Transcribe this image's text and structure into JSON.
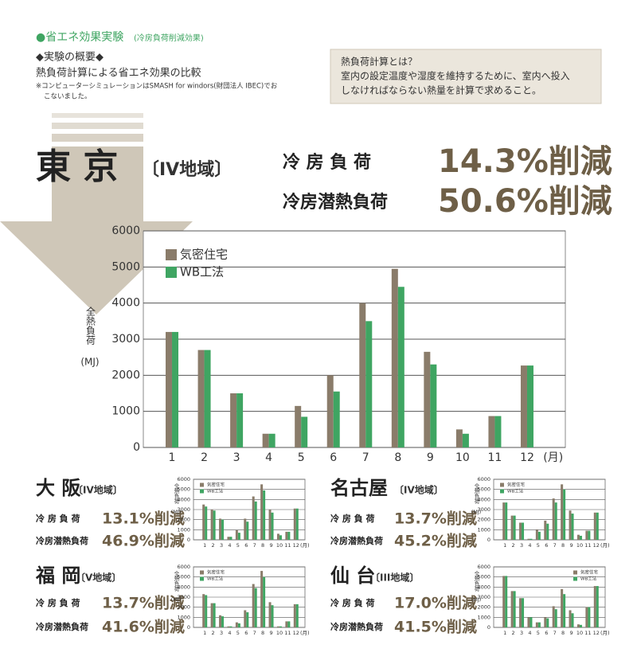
{
  "header": {
    "title": "●省エネ効果実験",
    "title_note": "(冷房負荷削減効果)",
    "section": "◆実験の概要◆",
    "description": "熱負荷計算による省エネ効果の比較",
    "note_lines": [
      "※コンピューターシミュレーションはSMASH for windors(財団法人 IBEC)でお",
      "こないました。"
    ]
  },
  "info_box": {
    "title": "熱負荷計算とは？",
    "lines": [
      "室内の設定温度や湿度を維持するために、室内へ投入",
      "しなければならない熱量を計算で求めること。"
    ]
  },
  "chart_data": [
    {
      "type": "bar",
      "title": "東 京",
      "region": "〔IV地域〕",
      "stats": [
        {
          "label": "冷 房 負 荷",
          "value": "14.3%削減"
        },
        {
          "label": "冷房潜熱負荷",
          "value": "50.6%削減"
        }
      ],
      "ylabel": "全熱負荷",
      "ylabel_unit": "(MJ)",
      "x_unit": "(月)",
      "categories": [
        "1",
        "2",
        "3",
        "4",
        "5",
        "6",
        "7",
        "8",
        "9",
        "10",
        "11",
        "12"
      ],
      "series": [
        {
          "name": "気密住宅",
          "color": "#8a7c6a",
          "values": [
            3200,
            2700,
            1500,
            380,
            1150,
            2000,
            4000,
            4950,
            2650,
            500,
            870,
            2270
          ]
        },
        {
          "name": "WB工法",
          "color": "#3fa562",
          "values": [
            3200,
            2700,
            1500,
            380,
            850,
            1550,
            3500,
            4450,
            2300,
            380,
            870,
            2270
          ]
        }
      ],
      "ylim": [
        0,
        6000
      ],
      "yticks": [
        0,
        1000,
        2000,
        3000,
        4000,
        5000,
        6000
      ],
      "grid": true,
      "legend": "upper left"
    },
    {
      "type": "bar",
      "title": "大 阪",
      "region": "〔IV地域〕",
      "stats": [
        {
          "label": "冷 房 負 荷",
          "value": "13.1%削減"
        },
        {
          "label": "冷房潜熱負荷",
          "value": "46.9%削減"
        }
      ],
      "ylabel": "全熱負荷",
      "ylabel_unit": "(MJ)",
      "x_unit": "(月)",
      "categories": [
        "1",
        "2",
        "3",
        "4",
        "5",
        "6",
        "7",
        "8",
        "9",
        "10",
        "11",
        "12"
      ],
      "series": [
        {
          "name": "気密住宅",
          "color": "#8a7c6a",
          "values": [
            3500,
            3000,
            2100,
            300,
            950,
            2100,
            4300,
            5500,
            3000,
            600,
            800,
            3100
          ]
        },
        {
          "name": "WB工法",
          "color": "#3fa562",
          "values": [
            3300,
            2900,
            2000,
            300,
            700,
            1800,
            3800,
            4900,
            2700,
            450,
            800,
            3100
          ]
        }
      ],
      "ylim": [
        0,
        6000
      ],
      "yticks": [
        0,
        1000,
        2000,
        3000,
        4000,
        5000,
        6000
      ],
      "grid": true,
      "legend": "upper left"
    },
    {
      "type": "bar",
      "title": "名古屋",
      "region": "〔IV地域〕",
      "stats": [
        {
          "label": "冷 房 負 荷",
          "value": "13.7%削減"
        },
        {
          "label": "冷房潜熱負荷",
          "value": "45.2%削減"
        }
      ],
      "ylabel": "全熱負荷",
      "ylabel_unit": "(MJ)",
      "x_unit": "(月)",
      "categories": [
        "1",
        "2",
        "3",
        "4",
        "5",
        "6",
        "7",
        "8",
        "9",
        "10",
        "11",
        "12"
      ],
      "series": [
        {
          "name": "気密住宅",
          "color": "#8a7c6a",
          "values": [
            3700,
            2400,
            1700,
            100,
            1000,
            1900,
            4100,
            5500,
            2900,
            500,
            900,
            2700
          ]
        },
        {
          "name": "WB工法",
          "color": "#3fa562",
          "values": [
            3700,
            2400,
            1700,
            100,
            800,
            1600,
            3700,
            5000,
            2600,
            400,
            900,
            2700
          ]
        }
      ],
      "ylim": [
        0,
        6000
      ],
      "yticks": [
        0,
        1000,
        2000,
        3000,
        4000,
        5000,
        6000
      ],
      "grid": true,
      "legend": "upper left"
    },
    {
      "type": "bar",
      "title": "福 岡",
      "region": "〔V地域〕",
      "stats": [
        {
          "label": "冷 房 負 荷",
          "value": "13.7%削減"
        },
        {
          "label": "冷房潜熱負荷",
          "value": "41.6%削減"
        }
      ],
      "ylabel": "全熱負荷",
      "ylabel_unit": "(MJ)",
      "x_unit": "(月)",
      "categories": [
        "1",
        "2",
        "3",
        "4",
        "5",
        "6",
        "7",
        "8",
        "9",
        "10",
        "11",
        "12"
      ],
      "series": [
        {
          "name": "気密住宅",
          "color": "#8a7c6a",
          "values": [
            3300,
            2400,
            1200,
            100,
            500,
            1700,
            4300,
            5600,
            2500,
            100,
            600,
            2300
          ]
        },
        {
          "name": "WB工法",
          "color": "#3fa562",
          "values": [
            3200,
            2400,
            1100,
            100,
            400,
            1500,
            3900,
            5000,
            2200,
            100,
            600,
            2300
          ]
        }
      ],
      "ylim": [
        0,
        6000
      ],
      "yticks": [
        0,
        1000,
        2000,
        3000,
        4000,
        5000,
        6000
      ],
      "grid": true,
      "legend": "upper left"
    },
    {
      "type": "bar",
      "title": "仙 台",
      "region": "〔III地域〕",
      "stats": [
        {
          "label": "冷 房 負 荷",
          "value": "17.0%削減"
        },
        {
          "label": "冷房潜熱負荷",
          "value": "41.5%削減"
        }
      ],
      "ylabel": "全熱負荷",
      "ylabel_unit": "(MJ)",
      "x_unit": "(月)",
      "categories": [
        "1",
        "2",
        "3",
        "4",
        "5",
        "6",
        "7",
        "8",
        "9",
        "10",
        "11",
        "12"
      ],
      "series": [
        {
          "name": "気密住宅",
          "color": "#8a7c6a",
          "values": [
            5100,
            3600,
            2900,
            1000,
            500,
            1000,
            2100,
            3800,
            1700,
            300,
            2000,
            4100
          ]
        },
        {
          "name": "WB工法",
          "color": "#3fa562",
          "values": [
            5100,
            3600,
            2900,
            1000,
            500,
            900,
            1800,
            3300,
            1400,
            250,
            2000,
            4100
          ]
        }
      ],
      "ylim": [
        0,
        6000
      ],
      "yticks": [
        0,
        1000,
        2000,
        3000,
        4000,
        5000,
        6000
      ],
      "grid": true,
      "legend": "upper right"
    }
  ]
}
